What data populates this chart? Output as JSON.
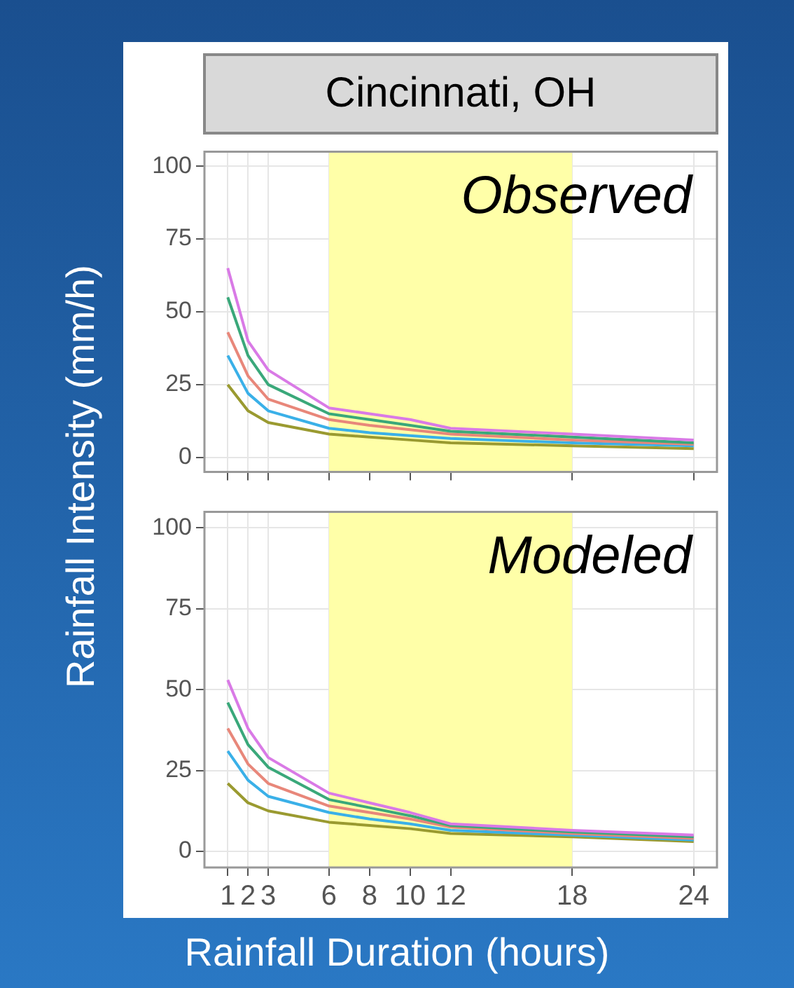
{
  "chart_data": [
    {
      "type": "line",
      "title": "Cincinnati, OH",
      "ylabel": "Rainfall Intensity (mm/h)",
      "annotations": [
        "Observed"
      ],
      "x": [
        1,
        2,
        3,
        6,
        8,
        10,
        12,
        18,
        24
      ],
      "xlim": [
        -0.15,
        25.15
      ],
      "xticks": [
        1,
        2,
        3,
        6,
        8,
        10,
        12,
        18,
        24
      ],
      "ylim": [
        -5,
        105
      ],
      "yticks": [
        0,
        25,
        50,
        75,
        100
      ],
      "tick_labels": "y",
      "grid": true,
      "marker": "none",
      "bands": [
        {
          "axis": "x",
          "from": 6,
          "to": 18,
          "color": "#ffffa8"
        }
      ],
      "series": [
        {
          "color": "#d97ae6",
          "values": [
            65,
            40,
            30,
            17,
            15,
            13,
            10,
            8,
            6
          ]
        },
        {
          "color": "#3aa87a",
          "values": [
            55,
            35,
            25,
            15,
            13,
            11,
            9,
            7,
            5
          ]
        },
        {
          "color": "#e8877a",
          "values": [
            43,
            28,
            20,
            13,
            11,
            9.5,
            8,
            6,
            4.5
          ]
        },
        {
          "color": "#3ab0e8",
          "values": [
            35,
            22,
            16,
            10,
            8.5,
            7.5,
            6.5,
            5,
            4
          ]
        },
        {
          "color": "#9a9a30",
          "values": [
            25,
            16,
            12,
            8,
            7,
            6,
            5,
            4,
            3
          ]
        }
      ]
    },
    {
      "type": "line",
      "xlabel": "Rainfall Duration (hours)",
      "annotations": [
        "Modeled"
      ],
      "x": [
        1,
        2,
        3,
        6,
        8,
        10,
        12,
        18,
        24
      ],
      "xlim": [
        -0.15,
        25.15
      ],
      "xticks": [
        1,
        2,
        3,
        6,
        8,
        10,
        12,
        18,
        24
      ],
      "ylim": [
        -5,
        105
      ],
      "yticks": [
        0,
        25,
        50,
        75,
        100
      ],
      "grid": true,
      "marker": "none",
      "bands": [
        {
          "axis": "x",
          "from": 6,
          "to": 18,
          "color": "#ffffa8"
        }
      ],
      "series": [
        {
          "color": "#d97ae6",
          "values": [
            53,
            38,
            29,
            18,
            15,
            12,
            8.5,
            6.5,
            5
          ]
        },
        {
          "color": "#3aa87a",
          "values": [
            46,
            33,
            26,
            16,
            13.5,
            11,
            8,
            6,
            4.5
          ]
        },
        {
          "color": "#e8877a",
          "values": [
            38,
            27,
            21,
            14,
            12,
            10,
            7.5,
            5.5,
            4
          ]
        },
        {
          "color": "#3ab0e8",
          "values": [
            31,
            22,
            17,
            12,
            10,
            8.5,
            6.5,
            5,
            3.5
          ]
        },
        {
          "color": "#9a9a30",
          "values": [
            21,
            15,
            12.5,
            9,
            8,
            7,
            5.5,
            4.5,
            3
          ]
        }
      ]
    }
  ]
}
